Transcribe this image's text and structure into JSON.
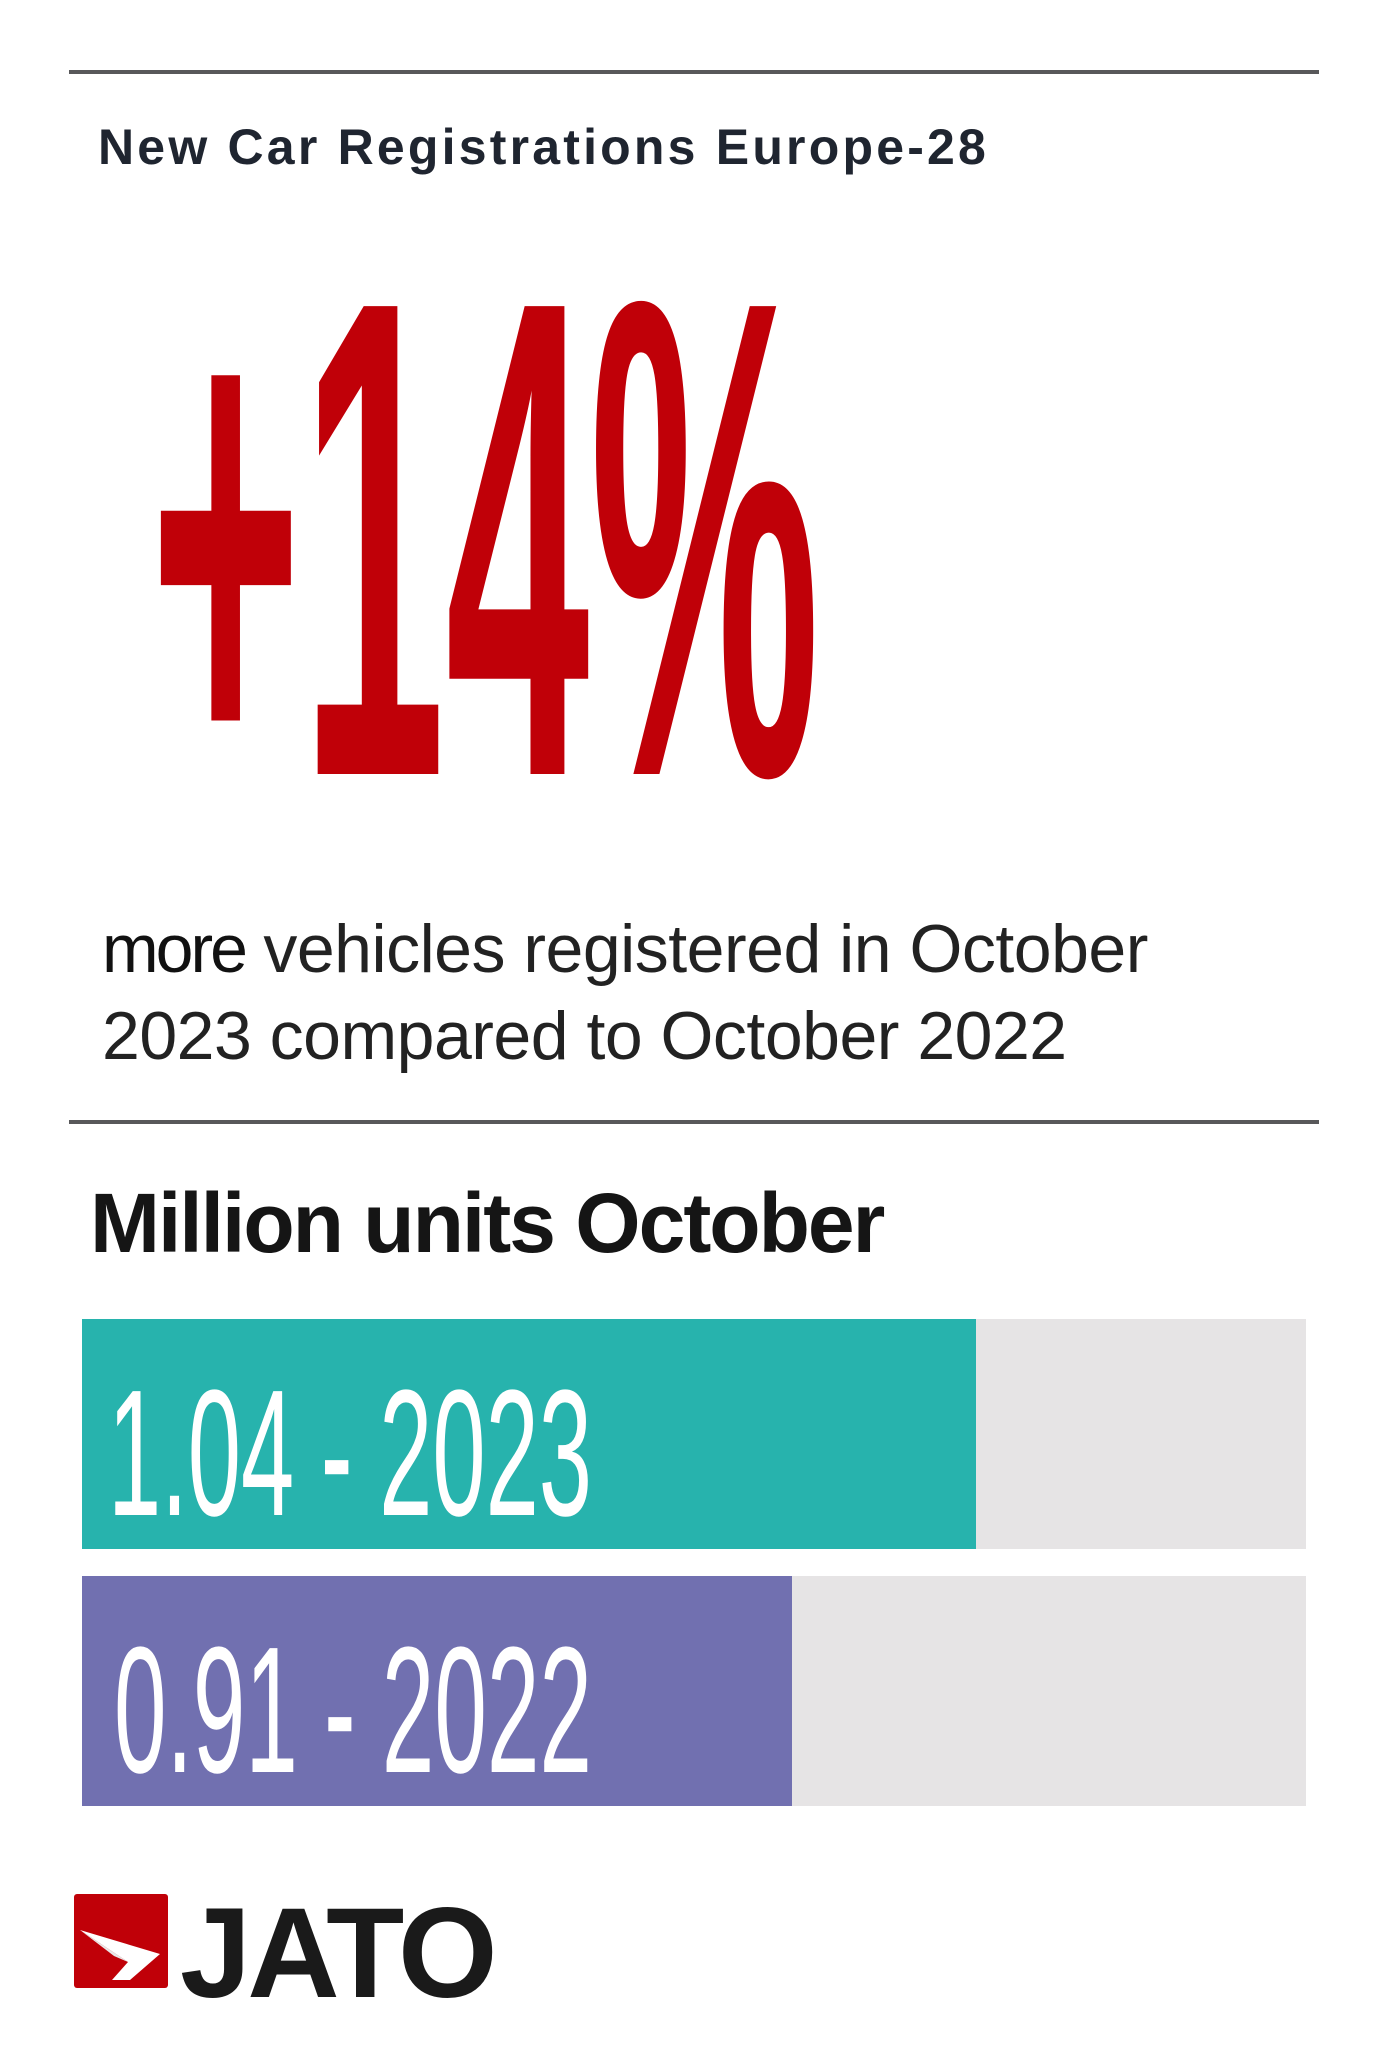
{
  "header": {
    "title": "New Car Registrations Europe-28"
  },
  "headline": {
    "value": "+14%",
    "color": "#c00008"
  },
  "description": {
    "emphasis": "more",
    "line1_rest": " vehicles registered in October",
    "line2": "2023 compared to October 2022"
  },
  "chart_data": {
    "type": "bar",
    "orientation": "horizontal",
    "title": "Million units October",
    "categories": [
      "2023",
      "2022"
    ],
    "values": [
      1.04,
      0.91
    ],
    "labels": [
      "1.04 - 2023",
      "0.91 - 2022"
    ],
    "fill_percent": [
      73,
      58
    ],
    "colors": [
      "#27b3ad",
      "#7170b0"
    ],
    "track_color": "#e6e4e5"
  },
  "logo": {
    "text": "JATO",
    "color": "#c00008"
  }
}
